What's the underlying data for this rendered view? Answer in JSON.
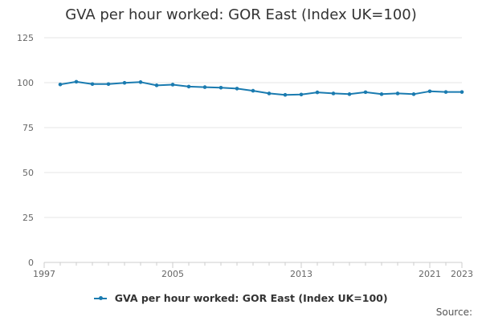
{
  "chart_data": {
    "type": "line",
    "title": "GVA per hour worked: GOR East (Index UK=100)",
    "x": [
      1998,
      1999,
      2000,
      2001,
      2002,
      2003,
      2004,
      2005,
      2006,
      2007,
      2008,
      2009,
      2010,
      2011,
      2012,
      2013,
      2014,
      2015,
      2016,
      2017,
      2018,
      2019,
      2020,
      2021,
      2022,
      2023
    ],
    "series": [
      {
        "name": "GVA per hour worked: GOR East (Index UK=100)",
        "color": "#1a7bb0",
        "values": [
          99.0,
          100.5,
          99.2,
          99.2,
          99.9,
          100.3,
          98.5,
          98.9,
          97.8,
          97.5,
          97.2,
          96.7,
          95.5,
          94.0,
          93.2,
          93.4,
          94.6,
          94.0,
          93.6,
          94.7,
          93.6,
          94.0,
          93.6,
          95.2,
          94.8,
          94.8
        ]
      }
    ],
    "x_ticks": [
      1997,
      2005,
      2013,
      2021,
      2023
    ],
    "y_ticks": [
      0,
      25,
      50,
      75,
      100,
      125
    ],
    "xlim": [
      1997,
      2023
    ],
    "ylim": [
      0,
      125
    ],
    "grid": "horizontal",
    "legend": "bottom",
    "source_label": "Source:"
  }
}
